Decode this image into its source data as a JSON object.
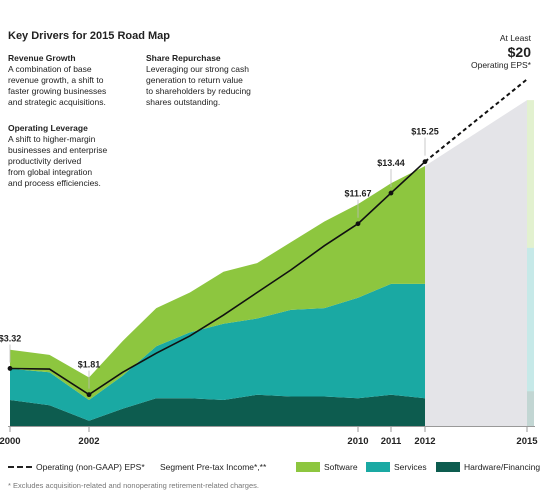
{
  "title": "Key Drivers for 2015 Road Map",
  "drivers": [
    {
      "heading": "Revenue Growth",
      "body": "A combination of base\nrevenue growth, a shift to\nfaster growing businesses\nand strategic acquisitions."
    },
    {
      "heading": "Share Repurchase",
      "body": "Leveraging our strong cash\ngeneration to return value\nto shareholders by reducing\nshares outstanding."
    },
    {
      "heading": "Operating Leverage",
      "body": "A shift to higher-margin\nbusinesses and enterprise\nproductivity derived\nfrom global integration\nand process efficiencies."
    }
  ],
  "target": {
    "line1": "At Least",
    "value": "$20",
    "line3": "Operating EPS*"
  },
  "legend": {
    "eps": "Operating (non-GAAP) EPS*",
    "segment": "Segment Pre-tax Income*,**",
    "software": "Software",
    "services": "Services",
    "hardware": "Hardware/Financing"
  },
  "footnote": "* Excludes acquisition-related and nonoperating retirement-related charges.",
  "colors": {
    "software": "#8dc63f",
    "services": "#1aa9a3",
    "hardware": "#0d5c4f",
    "projection": "#e4e4e8",
    "eps_line": "#111111"
  },
  "chart_data": {
    "type": "area",
    "x_ticks": [
      "2000",
      "2002",
      "2010",
      "2011",
      "2012",
      "2015"
    ],
    "x": [
      2000,
      2001,
      2002,
      2003,
      2004,
      2005,
      2006,
      2007,
      2008,
      2009,
      2010,
      2011,
      2012
    ],
    "ylim": [
      0,
      21
    ],
    "series": [
      {
        "name": "Hardware/Financing",
        "values": [
          1.5,
          1.2,
          0.3,
          1.0,
          1.6,
          1.6,
          1.5,
          1.8,
          1.7,
          1.7,
          1.6,
          1.8,
          1.6
        ]
      },
      {
        "name": "Services",
        "values": [
          1.8,
          1.9,
          1.2,
          1.9,
          3.0,
          3.8,
          4.4,
          4.4,
          5.0,
          5.1,
          5.8,
          6.4,
          6.6
        ]
      },
      {
        "name": "Software",
        "values": [
          1.1,
          1.0,
          1.3,
          2.0,
          2.2,
          2.3,
          3.0,
          3.2,
          3.9,
          5.0,
          5.4,
          5.8,
          6.8
        ]
      }
    ],
    "eps": {
      "name": "Operating (non-GAAP) EPS*",
      "x": [
        2000,
        2001,
        2002,
        2003,
        2004,
        2005,
        2006,
        2007,
        2008,
        2009,
        2010,
        2011,
        2012
      ],
      "values": [
        3.32,
        3.28,
        1.81,
        3.1,
        4.2,
        5.2,
        6.4,
        7.7,
        9.0,
        10.4,
        11.67,
        13.44,
        15.25
      ],
      "labels": {
        "2000": "$3.32",
        "2002": "$1.81",
        "2010": "$11.67",
        "2011": "$13.44",
        "2012": "$15.25"
      }
    },
    "projection": {
      "from": 2012,
      "to": 2015,
      "eps_target": 20
    }
  }
}
